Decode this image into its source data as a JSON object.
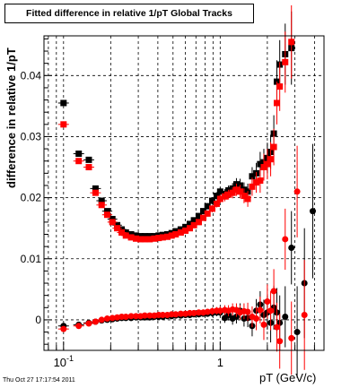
{
  "chart_data": {
    "type": "scatter",
    "title": "Fitted difference in relative 1/pT  Global Tracks",
    "xlabel": "pT (GeV/c)",
    "ylabel": "difference in relative 1/pT",
    "xscale": "log",
    "xlim": [
      0.075,
      4.6
    ],
    "ylim": [
      -0.005,
      0.0465
    ],
    "grid": true,
    "legend": "none",
    "x_tick_labels": [
      {
        "value": 0.1,
        "base": "10",
        "exp": "-1"
      },
      {
        "value": 1,
        "base": "1",
        "exp": ""
      }
    ],
    "y_ticks": [
      {
        "value": 0,
        "label": "0"
      },
      {
        "value": 0.01,
        "label": "0.01"
      },
      {
        "value": 0.02,
        "label": "0.02"
      },
      {
        "value": 0.03,
        "label": "0.03"
      },
      {
        "value": 0.04,
        "label": "0.04"
      }
    ],
    "series": [
      {
        "color": "#000000",
        "x": [
          0.1,
          0.125,
          0.145,
          0.16,
          0.175,
          0.19,
          0.205,
          0.22,
          0.235,
          0.25,
          0.27,
          0.29,
          0.31,
          0.33,
          0.355,
          0.38,
          0.405,
          0.43,
          0.46,
          0.49,
          0.52,
          0.56,
          0.6,
          0.64,
          0.68,
          0.73,
          0.78,
          0.83,
          0.89,
          0.95,
          1.0,
          1.07,
          1.13,
          1.2,
          1.27,
          1.34,
          1.42,
          1.5,
          1.6,
          1.7,
          1.8,
          1.9,
          2.0,
          2.1,
          2.2,
          2.3,
          2.4,
          2.6,
          2.85
        ],
        "y": [
          0.0355,
          0.0272,
          0.0262,
          0.0215,
          0.0195,
          0.0178,
          0.0165,
          0.0155,
          0.0148,
          0.0143,
          0.014,
          0.0138,
          0.0137,
          0.0137,
          0.0137,
          0.0137,
          0.0138,
          0.0139,
          0.014,
          0.0142,
          0.0145,
          0.0148,
          0.0152,
          0.0157,
          0.0163,
          0.017,
          0.0178,
          0.0186,
          0.0195,
          0.0203,
          0.021,
          0.0206,
          0.0212,
          0.0215,
          0.0222,
          0.022,
          0.0213,
          0.021,
          0.0235,
          0.024,
          0.0255,
          0.0258,
          0.0265,
          0.0275,
          0.0305,
          0.039,
          0.0418,
          0.0435,
          0.0445
        ],
        "yerr": [
          0.0005,
          0.0004,
          0.0003,
          0.0003,
          0.0003,
          0.0003,
          0.0003,
          0.0003,
          0.0003,
          0.0003,
          0.0003,
          0.0003,
          0.0003,
          0.0003,
          0.0003,
          0.0003,
          0.0003,
          0.0003,
          0.0003,
          0.0003,
          0.0003,
          0.0003,
          0.0003,
          0.0003,
          0.0004,
          0.0004,
          0.0004,
          0.0005,
          0.0006,
          0.0006,
          0.0007,
          0.0008,
          0.0008,
          0.0009,
          0.001,
          0.0011,
          0.0012,
          0.0013,
          0.0015,
          0.0017,
          0.002,
          0.0022,
          0.0025,
          0.0028,
          0.003,
          0.0035,
          0.004,
          0.005,
          0.006
        ]
      },
      {
        "color": "#ff0000",
        "x": [
          0.1,
          0.125,
          0.145,
          0.16,
          0.175,
          0.19,
          0.205,
          0.22,
          0.235,
          0.25,
          0.27,
          0.29,
          0.31,
          0.33,
          0.355,
          0.38,
          0.405,
          0.43,
          0.46,
          0.49,
          0.52,
          0.56,
          0.6,
          0.64,
          0.68,
          0.73,
          0.78,
          0.83,
          0.89,
          0.95,
          1.0,
          1.07,
          1.13,
          1.2,
          1.27,
          1.34,
          1.42,
          1.5,
          1.6,
          1.7,
          1.8,
          1.9,
          2.0,
          2.1,
          2.2,
          2.3,
          2.4,
          2.6,
          2.85
        ],
        "y": [
          0.032,
          0.026,
          0.025,
          0.0208,
          0.0188,
          0.0172,
          0.016,
          0.015,
          0.0143,
          0.0138,
          0.0135,
          0.0133,
          0.0132,
          0.0132,
          0.0132,
          0.0133,
          0.0134,
          0.0135,
          0.0136,
          0.0138,
          0.014,
          0.0143,
          0.0146,
          0.015,
          0.0155,
          0.016,
          0.0167,
          0.0174,
          0.0182,
          0.019,
          0.0198,
          0.0202,
          0.0205,
          0.0208,
          0.0213,
          0.021,
          0.0203,
          0.0198,
          0.0218,
          0.0225,
          0.0228,
          0.025,
          0.0255,
          0.0263,
          0.0283,
          0.0355,
          0.0382,
          0.0422,
          0.0455
        ],
        "yerr": [
          0.0005,
          0.0004,
          0.0003,
          0.0003,
          0.0003,
          0.0003,
          0.0003,
          0.0003,
          0.0003,
          0.0003,
          0.0003,
          0.0003,
          0.0003,
          0.0003,
          0.0003,
          0.0003,
          0.0003,
          0.0003,
          0.0003,
          0.0003,
          0.0003,
          0.0003,
          0.0003,
          0.0003,
          0.0004,
          0.0004,
          0.0004,
          0.0005,
          0.0006,
          0.0006,
          0.0007,
          0.0008,
          0.0008,
          0.0009,
          0.001,
          0.0011,
          0.0012,
          0.0013,
          0.0015,
          0.0017,
          0.002,
          0.0022,
          0.0025,
          0.0028,
          0.003,
          0.0035,
          0.004,
          0.005,
          0.006
        ]
      },
      {
        "color": "#000000",
        "x": [
          0.1,
          0.125,
          0.145,
          0.16,
          0.175,
          0.19,
          0.205,
          0.22,
          0.235,
          0.25,
          0.27,
          0.29,
          0.31,
          0.33,
          0.355,
          0.38,
          0.405,
          0.43,
          0.46,
          0.49,
          0.52,
          0.56,
          0.6,
          0.64,
          0.68,
          0.73,
          0.78,
          0.83,
          0.89,
          0.95,
          1.0,
          1.07,
          1.13,
          1.2,
          1.27,
          1.34,
          1.42,
          1.5,
          1.6,
          1.7,
          1.8,
          1.9,
          2.0,
          2.1,
          2.2,
          2.3,
          2.4,
          2.6,
          2.85,
          3.1,
          3.45,
          3.9
        ],
        "y": [
          -0.001,
          -0.0008,
          -0.0005,
          -0.0003,
          -0.0001,
          0.0,
          0.0001,
          0.0002,
          0.0003,
          0.0003,
          0.0003,
          0.0004,
          0.0004,
          0.0004,
          0.0004,
          0.0005,
          0.0005,
          0.0005,
          0.0006,
          0.0006,
          0.0007,
          0.0007,
          0.0008,
          0.0008,
          0.0009,
          0.0009,
          0.001,
          0.001,
          0.0011,
          0.0012,
          0.0012,
          0.0003,
          0.0008,
          0.0002,
          0.0005,
          0.0015,
          0.0002,
          0.0003,
          -0.001,
          0.0015,
          0.0025,
          0.0008,
          0.0012,
          -0.0005,
          0.002,
          0.0012,
          -0.0005,
          0.0005,
          0.0118,
          -0.002,
          0.006,
          0.0178
        ],
        "yerr": [
          0.0003,
          0.0003,
          0.0002,
          0.0002,
          0.0002,
          0.0002,
          0.0002,
          0.0002,
          0.0002,
          0.0002,
          0.0002,
          0.0002,
          0.0002,
          0.0002,
          0.0002,
          0.0002,
          0.0002,
          0.0002,
          0.0003,
          0.0003,
          0.0003,
          0.0003,
          0.0003,
          0.0004,
          0.0004,
          0.0004,
          0.0005,
          0.0005,
          0.0006,
          0.0006,
          0.0007,
          0.0008,
          0.0009,
          0.001,
          0.0011,
          0.0012,
          0.0013,
          0.0015,
          0.0017,
          0.0019,
          0.0022,
          0.0025,
          0.0028,
          0.0032,
          0.0036,
          0.004,
          0.0045,
          0.005,
          0.006,
          0.0075,
          0.009,
          0.011
        ]
      },
      {
        "color": "#ff0000",
        "x": [
          0.1,
          0.125,
          0.145,
          0.16,
          0.175,
          0.19,
          0.205,
          0.22,
          0.235,
          0.25,
          0.27,
          0.29,
          0.31,
          0.33,
          0.355,
          0.38,
          0.405,
          0.43,
          0.46,
          0.49,
          0.52,
          0.56,
          0.6,
          0.64,
          0.68,
          0.73,
          0.78,
          0.83,
          0.89,
          0.95,
          1.0,
          1.07,
          1.13,
          1.2,
          1.27,
          1.34,
          1.42,
          1.5,
          1.6,
          1.7,
          1.8,
          1.9,
          2.0,
          2.1,
          2.2,
          2.3,
          2.4,
          2.6,
          2.85,
          3.1,
          3.45
        ],
        "y": [
          -0.0015,
          -0.001,
          -0.0006,
          -0.0003,
          0.0,
          0.0002,
          0.0003,
          0.0004,
          0.0005,
          0.0005,
          0.0006,
          0.0006,
          0.0006,
          0.0007,
          0.0007,
          0.0007,
          0.0008,
          0.0008,
          0.0008,
          0.0009,
          0.0009,
          0.001,
          0.001,
          0.0011,
          0.0011,
          0.0012,
          0.0012,
          0.0013,
          0.0014,
          0.0015,
          0.0015,
          0.0016,
          0.0015,
          0.0017,
          0.0016,
          0.0012,
          0.0014,
          0.0013,
          0.0005,
          0.0002,
          0.0016,
          -0.0008,
          0.003,
          0.0015,
          0.0047,
          -0.0012,
          -0.0035,
          0.0132,
          -0.003,
          0.021,
          0.0008
        ],
        "yerr": [
          0.0003,
          0.0003,
          0.0002,
          0.0002,
          0.0002,
          0.0002,
          0.0002,
          0.0002,
          0.0002,
          0.0002,
          0.0002,
          0.0002,
          0.0002,
          0.0002,
          0.0002,
          0.0002,
          0.0002,
          0.0002,
          0.0003,
          0.0003,
          0.0003,
          0.0003,
          0.0003,
          0.0004,
          0.0004,
          0.0004,
          0.0005,
          0.0005,
          0.0006,
          0.0006,
          0.0007,
          0.0008,
          0.0009,
          0.001,
          0.0011,
          0.0012,
          0.0013,
          0.0015,
          0.0017,
          0.0019,
          0.0022,
          0.0025,
          0.0028,
          0.0032,
          0.0036,
          0.004,
          0.0045,
          0.005,
          0.006,
          0.0075,
          0.009
        ]
      }
    ]
  },
  "footer": {
    "timestamp": "Thu Oct 27 17:17:54 2011"
  }
}
